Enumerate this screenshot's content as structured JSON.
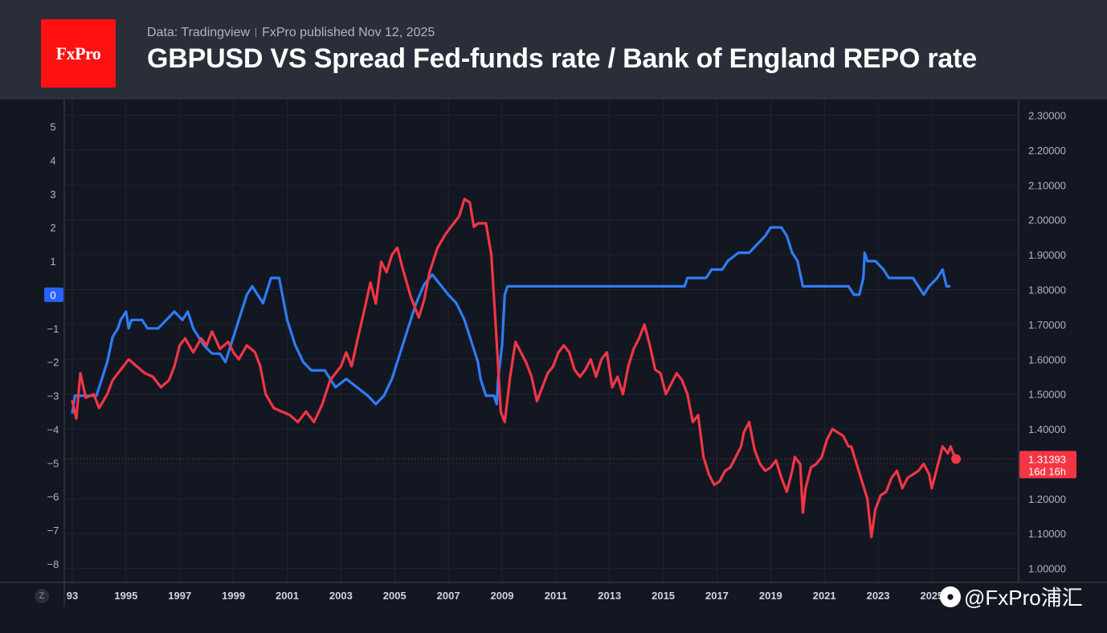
{
  "header": {
    "logo_text": "FxPro",
    "source": "Data: Tradingview",
    "published": "FxPro published Nov 12, 2025",
    "title": "GBPUSD VS Spread Fed-funds rate / Bank of England REPO rate"
  },
  "watermark": {
    "icon": "wechat-icon",
    "text": "@FxPro浦汇"
  },
  "zoom_button": "Z",
  "chart_data": {
    "type": "line",
    "x_ticks": [
      "93",
      "1995",
      "1997",
      "1999",
      "2001",
      "2003",
      "2005",
      "2007",
      "2009",
      "2011",
      "2013",
      "2015",
      "2017",
      "2019",
      "2021",
      "2023",
      "2025"
    ],
    "left_axis": {
      "ticks": [
        "5",
        "4",
        "3",
        "2",
        "1",
        "0",
        "−1",
        "−2",
        "−3",
        "−4",
        "−5",
        "−6",
        "−7",
        "−8"
      ],
      "ylim": [
        -8.55,
        5.8
      ],
      "highlight": "0"
    },
    "right_axis": {
      "ticks": [
        "2.30000",
        "2.20000",
        "2.10000",
        "2.00000",
        "1.90000",
        "1.80000",
        "1.70000",
        "1.60000",
        "1.50000",
        "1.40000",
        "1.30000",
        "1.20000",
        "1.10000",
        "1.00000"
      ],
      "ylim": [
        0.96,
        2.345
      ]
    },
    "last_price": {
      "value": "1.31393",
      "countdown": "16d 16h",
      "level": 1.31393
    },
    "colors": {
      "gbpusd": "#f23645",
      "spread": "#2f7cf6",
      "background": "#131722",
      "grid": "#1f2430",
      "zero_badge": "#2962ff"
    },
    "series": [
      {
        "axis": "left",
        "color": "#2f7cf6",
        "points": [
          [
            1993.0,
            -3.5
          ],
          [
            1993.1,
            -3.0
          ],
          [
            1993.5,
            -3.0
          ],
          [
            1993.9,
            -3.0
          ],
          [
            1994.1,
            -2.5
          ],
          [
            1994.3,
            -2.0
          ],
          [
            1994.5,
            -1.25
          ],
          [
            1994.7,
            -1.0
          ],
          [
            1994.8,
            -0.75
          ],
          [
            1995.0,
            -0.5
          ],
          [
            1995.1,
            -1.0
          ],
          [
            1995.2,
            -0.75
          ],
          [
            1995.6,
            -0.75
          ],
          [
            1995.8,
            -1.0
          ],
          [
            1996.2,
            -1.0
          ],
          [
            1996.5,
            -0.75
          ],
          [
            1996.8,
            -0.5
          ],
          [
            1997.1,
            -0.75
          ],
          [
            1997.3,
            -0.5
          ],
          [
            1997.5,
            -1.0
          ],
          [
            1997.7,
            -1.25
          ],
          [
            1997.9,
            -1.5
          ],
          [
            1998.2,
            -1.75
          ],
          [
            1998.5,
            -1.75
          ],
          [
            1998.7,
            -2.0
          ],
          [
            1998.9,
            -1.5
          ],
          [
            1999.1,
            -1.0
          ],
          [
            1999.3,
            -0.5
          ],
          [
            1999.5,
            0.0
          ],
          [
            1999.7,
            0.25
          ],
          [
            1999.9,
            0.0
          ],
          [
            2000.1,
            -0.25
          ],
          [
            2000.4,
            0.5
          ],
          [
            2000.7,
            0.5
          ],
          [
            2001.0,
            -0.75
          ],
          [
            2001.3,
            -1.5
          ],
          [
            2001.6,
            -2.0
          ],
          [
            2001.9,
            -2.25
          ],
          [
            2002.4,
            -2.25
          ],
          [
            2002.8,
            -2.75
          ],
          [
            2003.2,
            -2.5
          ],
          [
            2003.6,
            -2.75
          ],
          [
            2004.0,
            -3.0
          ],
          [
            2004.3,
            -3.25
          ],
          [
            2004.6,
            -3.0
          ],
          [
            2004.9,
            -2.5
          ],
          [
            2005.2,
            -1.75
          ],
          [
            2005.5,
            -1.0
          ],
          [
            2005.8,
            -0.25
          ],
          [
            2006.1,
            0.3
          ],
          [
            2006.4,
            0.6
          ],
          [
            2006.7,
            0.3
          ],
          [
            2007.0,
            0.0
          ],
          [
            2007.3,
            -0.25
          ],
          [
            2007.6,
            -0.75
          ],
          [
            2007.9,
            -1.5
          ],
          [
            2008.1,
            -2.0
          ],
          [
            2008.2,
            -2.5
          ],
          [
            2008.4,
            -3.0
          ],
          [
            2008.7,
            -3.0
          ],
          [
            2008.8,
            -3.25
          ],
          [
            2008.85,
            -2.5
          ],
          [
            2009.0,
            -1.5
          ],
          [
            2009.1,
            0.0
          ],
          [
            2009.2,
            0.25
          ],
          [
            2010,
            0.25
          ],
          [
            2012,
            0.25
          ],
          [
            2014,
            0.25
          ],
          [
            2015.8,
            0.25
          ],
          [
            2015.9,
            0.5
          ],
          [
            2016.6,
            0.5
          ],
          [
            2016.8,
            0.75
          ],
          [
            2017.2,
            0.75
          ],
          [
            2017.4,
            1.0
          ],
          [
            2017.8,
            1.25
          ],
          [
            2018.2,
            1.25
          ],
          [
            2018.5,
            1.5
          ],
          [
            2018.8,
            1.75
          ],
          [
            2019.0,
            2.0
          ],
          [
            2019.4,
            2.0
          ],
          [
            2019.6,
            1.75
          ],
          [
            2019.8,
            1.25
          ],
          [
            2020.0,
            1.0
          ],
          [
            2020.2,
            0.25
          ],
          [
            2020.8,
            0.25
          ],
          [
            2021.5,
            0.25
          ],
          [
            2021.9,
            0.25
          ],
          [
            2022.1,
            0.0
          ],
          [
            2022.3,
            0.0
          ],
          [
            2022.45,
            0.5
          ],
          [
            2022.5,
            1.25
          ],
          [
            2022.6,
            1.0
          ],
          [
            2022.9,
            1.0
          ],
          [
            2023.2,
            0.75
          ],
          [
            2023.4,
            0.5
          ],
          [
            2023.7,
            0.5
          ],
          [
            2024.0,
            0.5
          ],
          [
            2024.3,
            0.5
          ],
          [
            2024.5,
            0.25
          ],
          [
            2024.7,
            0.0
          ],
          [
            2024.9,
            0.25
          ],
          [
            2025.2,
            0.5
          ],
          [
            2025.4,
            0.75
          ],
          [
            2025.55,
            0.25
          ],
          [
            2025.65,
            0.25
          ]
        ]
      },
      {
        "axis": "right",
        "color": "#f23645",
        "points": [
          [
            1993.0,
            1.48
          ],
          [
            1993.15,
            1.43
          ],
          [
            1993.3,
            1.56
          ],
          [
            1993.5,
            1.49
          ],
          [
            1993.8,
            1.5
          ],
          [
            1994.0,
            1.46
          ],
          [
            1994.3,
            1.5
          ],
          [
            1994.5,
            1.54
          ],
          [
            1994.9,
            1.58
          ],
          [
            1995.1,
            1.6
          ],
          [
            1995.4,
            1.58
          ],
          [
            1995.7,
            1.56
          ],
          [
            1996.0,
            1.55
          ],
          [
            1996.3,
            1.52
          ],
          [
            1996.6,
            1.54
          ],
          [
            1996.8,
            1.58
          ],
          [
            1997.0,
            1.64
          ],
          [
            1997.2,
            1.66
          ],
          [
            1997.5,
            1.62
          ],
          [
            1997.8,
            1.66
          ],
          [
            1998.0,
            1.64
          ],
          [
            1998.2,
            1.68
          ],
          [
            1998.5,
            1.63
          ],
          [
            1998.8,
            1.65
          ],
          [
            1999.0,
            1.62
          ],
          [
            1999.2,
            1.6
          ],
          [
            1999.5,
            1.64
          ],
          [
            1999.8,
            1.62
          ],
          [
            2000.0,
            1.58
          ],
          [
            2000.2,
            1.5
          ],
          [
            2000.5,
            1.46
          ],
          [
            2000.8,
            1.45
          ],
          [
            2001.1,
            1.44
          ],
          [
            2001.4,
            1.42
          ],
          [
            2001.7,
            1.45
          ],
          [
            2002.0,
            1.42
          ],
          [
            2002.3,
            1.47
          ],
          [
            2002.6,
            1.54
          ],
          [
            2002.8,
            1.56
          ],
          [
            2003.0,
            1.58
          ],
          [
            2003.2,
            1.62
          ],
          [
            2003.4,
            1.58
          ],
          [
            2003.6,
            1.65
          ],
          [
            2003.9,
            1.75
          ],
          [
            2004.1,
            1.82
          ],
          [
            2004.3,
            1.76
          ],
          [
            2004.5,
            1.88
          ],
          [
            2004.7,
            1.85
          ],
          [
            2004.9,
            1.9
          ],
          [
            2005.1,
            1.92
          ],
          [
            2005.3,
            1.86
          ],
          [
            2005.6,
            1.78
          ],
          [
            2005.9,
            1.72
          ],
          [
            2006.1,
            1.77
          ],
          [
            2006.3,
            1.85
          ],
          [
            2006.6,
            1.92
          ],
          [
            2006.9,
            1.96
          ],
          [
            2007.1,
            1.98
          ],
          [
            2007.4,
            2.01
          ],
          [
            2007.6,
            2.06
          ],
          [
            2007.8,
            2.05
          ],
          [
            2007.95,
            1.98
          ],
          [
            2008.1,
            1.99
          ],
          [
            2008.4,
            1.99
          ],
          [
            2008.6,
            1.9
          ],
          [
            2008.8,
            1.65
          ],
          [
            2008.95,
            1.45
          ],
          [
            2009.1,
            1.42
          ],
          [
            2009.3,
            1.55
          ],
          [
            2009.5,
            1.65
          ],
          [
            2009.7,
            1.62
          ],
          [
            2009.9,
            1.59
          ],
          [
            2010.1,
            1.55
          ],
          [
            2010.3,
            1.48
          ],
          [
            2010.5,
            1.52
          ],
          [
            2010.7,
            1.56
          ],
          [
            2010.9,
            1.58
          ],
          [
            2011.1,
            1.62
          ],
          [
            2011.3,
            1.64
          ],
          [
            2011.5,
            1.62
          ],
          [
            2011.7,
            1.57
          ],
          [
            2011.9,
            1.55
          ],
          [
            2012.1,
            1.57
          ],
          [
            2012.3,
            1.6
          ],
          [
            2012.5,
            1.55
          ],
          [
            2012.7,
            1.6
          ],
          [
            2012.9,
            1.62
          ],
          [
            2013.1,
            1.52
          ],
          [
            2013.3,
            1.55
          ],
          [
            2013.5,
            1.5
          ],
          [
            2013.7,
            1.58
          ],
          [
            2013.9,
            1.63
          ],
          [
            2014.1,
            1.66
          ],
          [
            2014.3,
            1.7
          ],
          [
            2014.5,
            1.64
          ],
          [
            2014.7,
            1.57
          ],
          [
            2014.9,
            1.56
          ],
          [
            2015.1,
            1.5
          ],
          [
            2015.3,
            1.53
          ],
          [
            2015.5,
            1.56
          ],
          [
            2015.7,
            1.54
          ],
          [
            2015.9,
            1.5
          ],
          [
            2016.1,
            1.42
          ],
          [
            2016.3,
            1.44
          ],
          [
            2016.5,
            1.32
          ],
          [
            2016.7,
            1.27
          ],
          [
            2016.9,
            1.24
          ],
          [
            2017.1,
            1.25
          ],
          [
            2017.3,
            1.28
          ],
          [
            2017.5,
            1.29
          ],
          [
            2017.7,
            1.32
          ],
          [
            2017.9,
            1.35
          ],
          [
            2018.0,
            1.39
          ],
          [
            2018.2,
            1.42
          ],
          [
            2018.4,
            1.34
          ],
          [
            2018.6,
            1.3
          ],
          [
            2018.8,
            1.28
          ],
          [
            2019.0,
            1.29
          ],
          [
            2019.2,
            1.31
          ],
          [
            2019.4,
            1.26
          ],
          [
            2019.6,
            1.22
          ],
          [
            2019.8,
            1.28
          ],
          [
            2019.9,
            1.32
          ],
          [
            2020.1,
            1.3
          ],
          [
            2020.2,
            1.16
          ],
          [
            2020.3,
            1.23
          ],
          [
            2020.5,
            1.29
          ],
          [
            2020.7,
            1.3
          ],
          [
            2020.9,
            1.32
          ],
          [
            2021.1,
            1.37
          ],
          [
            2021.3,
            1.4
          ],
          [
            2021.5,
            1.39
          ],
          [
            2021.7,
            1.38
          ],
          [
            2021.9,
            1.35
          ],
          [
            2022.0,
            1.35
          ],
          [
            2022.2,
            1.3
          ],
          [
            2022.4,
            1.25
          ],
          [
            2022.6,
            1.2
          ],
          [
            2022.75,
            1.09
          ],
          [
            2022.9,
            1.17
          ],
          [
            2023.1,
            1.21
          ],
          [
            2023.3,
            1.22
          ],
          [
            2023.5,
            1.26
          ],
          [
            2023.7,
            1.28
          ],
          [
            2023.9,
            1.23
          ],
          [
            2024.1,
            1.26
          ],
          [
            2024.3,
            1.27
          ],
          [
            2024.5,
            1.28
          ],
          [
            2024.7,
            1.3
          ],
          [
            2024.9,
            1.27
          ],
          [
            2025.0,
            1.23
          ],
          [
            2025.2,
            1.29
          ],
          [
            2025.4,
            1.35
          ],
          [
            2025.5,
            1.34
          ],
          [
            2025.6,
            1.33
          ],
          [
            2025.7,
            1.35
          ],
          [
            2025.85,
            1.32
          ],
          [
            2025.9,
            1.31393
          ]
        ]
      }
    ]
  }
}
